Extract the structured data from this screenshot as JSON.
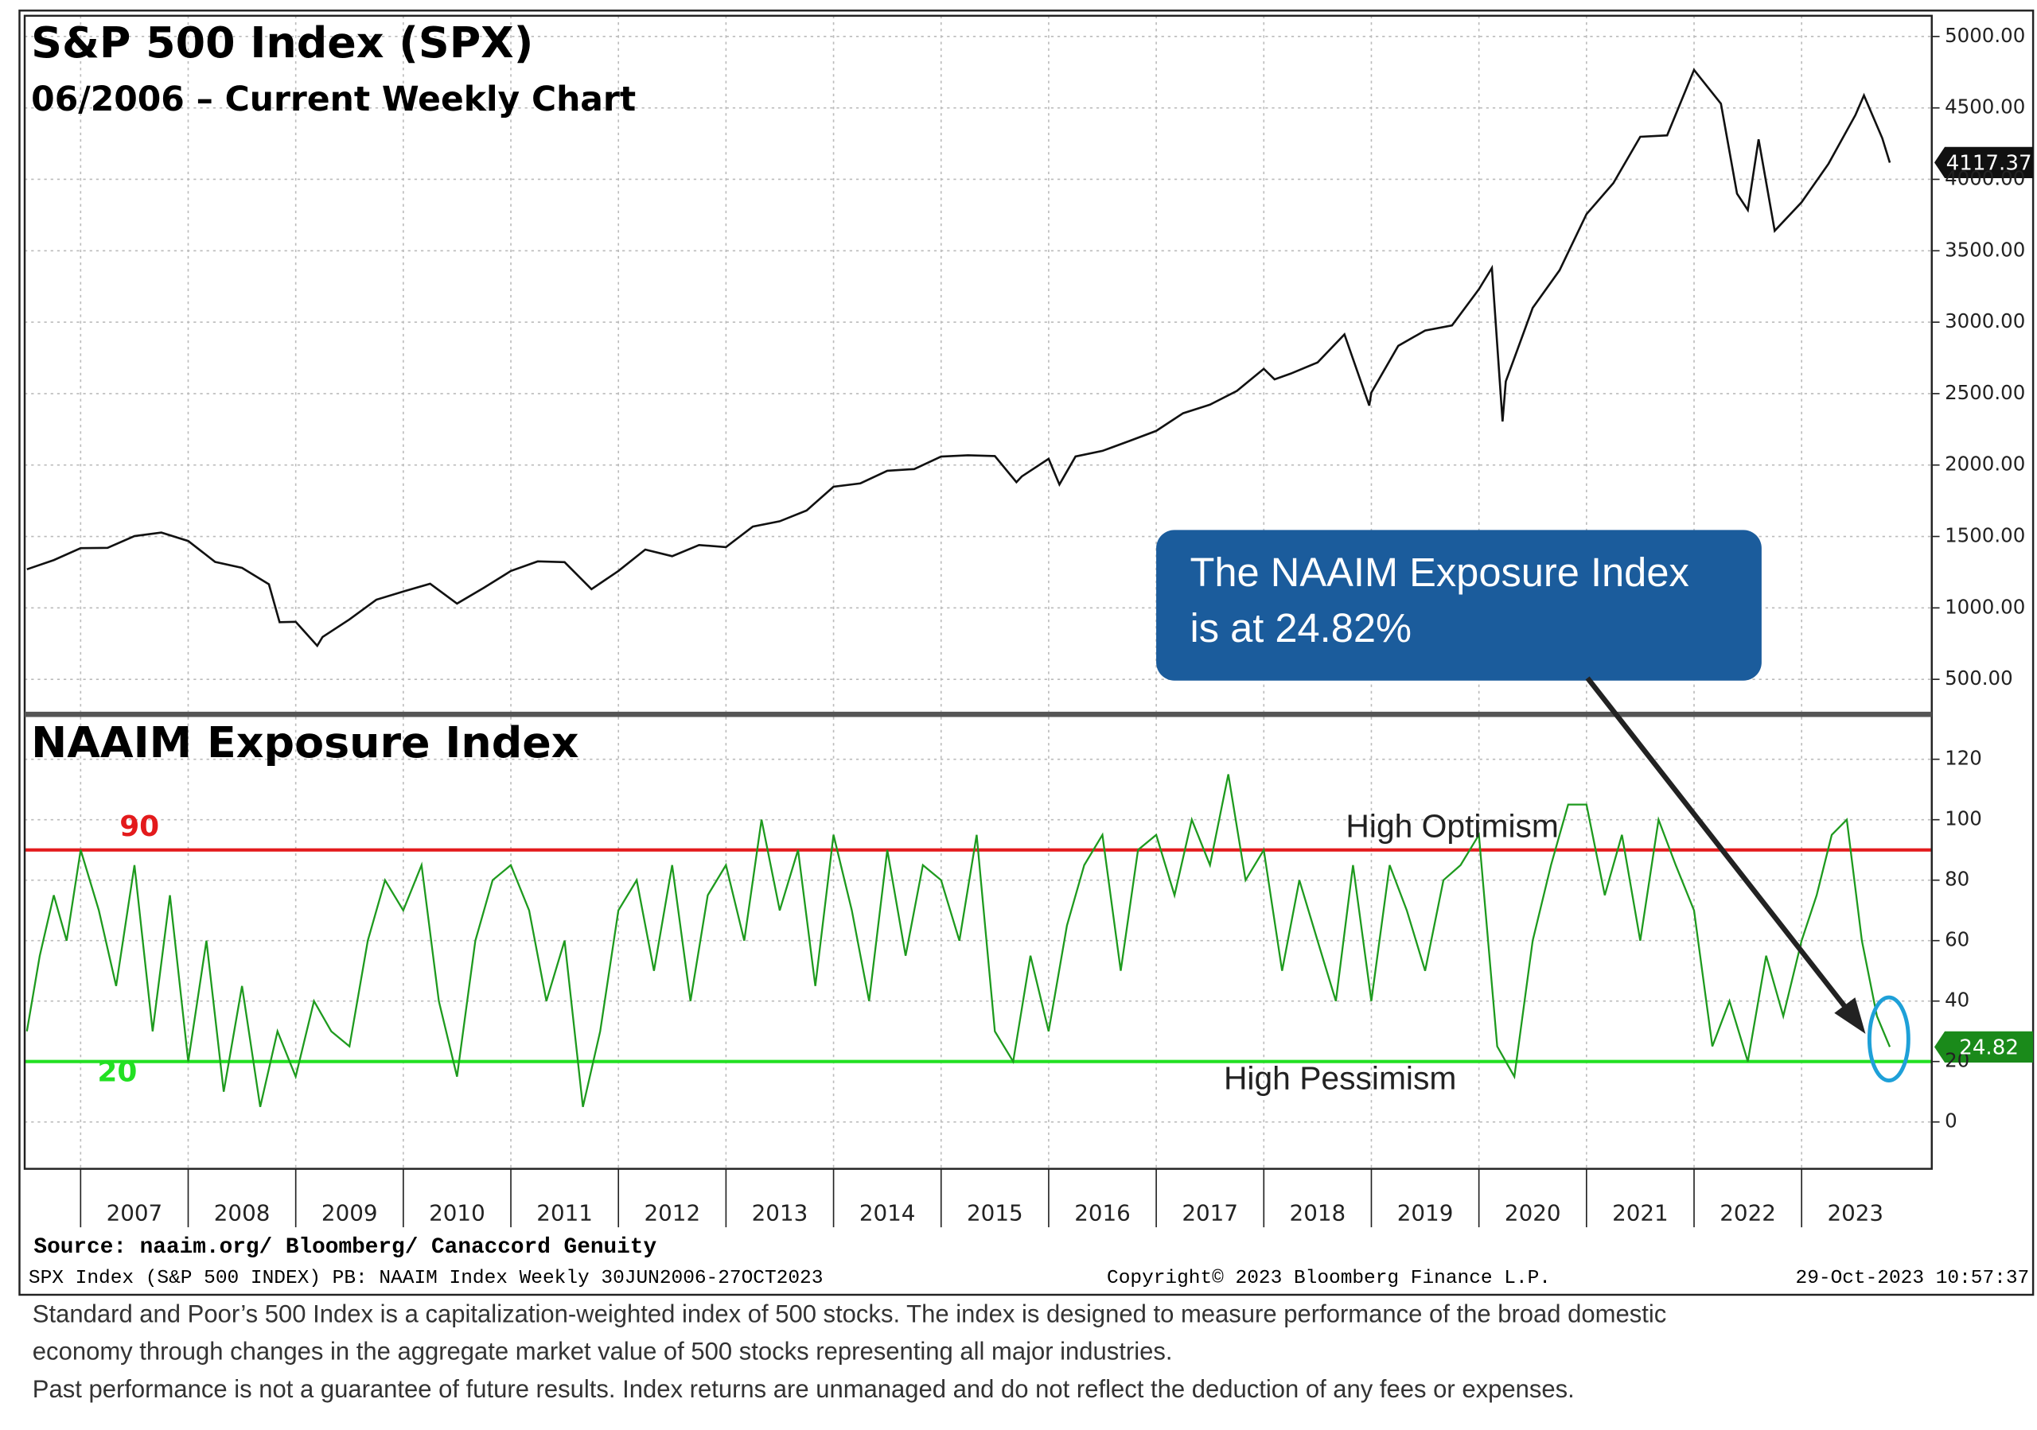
{
  "chart_data": [
    {
      "type": "line",
      "title": "S&P 500 Index (SPX)",
      "subtitle": "06/2006 – Current Weekly Chart",
      "color": "#111111",
      "x": [
        2006.5,
        2006.75,
        2007.0,
        2007.25,
        2007.5,
        2007.75,
        2008.0,
        2008.25,
        2008.5,
        2008.75,
        2008.85,
        2009.0,
        2009.2,
        2009.25,
        2009.5,
        2009.75,
        2010.0,
        2010.25,
        2010.5,
        2010.75,
        2011.0,
        2011.25,
        2011.5,
        2011.75,
        2012.0,
        2012.25,
        2012.5,
        2012.75,
        2013.0,
        2013.25,
        2013.5,
        2013.75,
        2014.0,
        2014.25,
        2014.5,
        2014.75,
        2015.0,
        2015.25,
        2015.5,
        2015.7,
        2015.75,
        2016.0,
        2016.1,
        2016.25,
        2016.5,
        2016.75,
        2017.0,
        2017.25,
        2017.5,
        2017.75,
        2018.0,
        2018.1,
        2018.25,
        2018.5,
        2018.75,
        2018.98,
        2019.0,
        2019.25,
        2019.5,
        2019.75,
        2020.0,
        2020.12,
        2020.22,
        2020.25,
        2020.5,
        2020.75,
        2021.0,
        2021.25,
        2021.5,
        2021.75,
        2022.0,
        2022.25,
        2022.4,
        2022.5,
        2022.6,
        2022.75,
        2023.0,
        2023.25,
        2023.5,
        2023.58,
        2023.75,
        2023.82
      ],
      "values": [
        1270,
        1335,
        1418,
        1420,
        1503,
        1527,
        1468,
        1322,
        1280,
        1166,
        900,
        903,
        735,
        797,
        919,
        1057,
        1115,
        1169,
        1030,
        1141,
        1258,
        1326,
        1320,
        1131,
        1258,
        1408,
        1362,
        1440,
        1426,
        1569,
        1606,
        1682,
        1848,
        1872,
        1960,
        1972,
        2059,
        2068,
        2063,
        1880,
        1920,
        2044,
        1864,
        2060,
        2099,
        2168,
        2239,
        2363,
        2423,
        2519,
        2674,
        2600,
        2640,
        2718,
        2914,
        2416,
        2507,
        2834,
        2942,
        2977,
        3231,
        3380,
        2305,
        2585,
        3100,
        3363,
        3756,
        3973,
        4298,
        4308,
        4766,
        4530,
        3900,
        3785,
        4280,
        3640,
        3840,
        4109,
        4450,
        4588,
        4288,
        4117.37
      ],
      "xlim": [
        2006.48,
        2024.21
      ],
      "ylim": [
        273,
        5145
      ],
      "yticks": [
        {
          "value": 500,
          "label": "500.00"
        },
        {
          "value": 1000,
          "label": "1000.00"
        },
        {
          "value": 1500,
          "label": "1500.00"
        },
        {
          "value": 2000,
          "label": "2000.00"
        },
        {
          "value": 2500,
          "label": "2500.00"
        },
        {
          "value": 3000,
          "label": "3000.00"
        },
        {
          "value": 3500,
          "label": "3500.00"
        },
        {
          "value": 4000,
          "label": "4000.00"
        },
        {
          "value": 4500,
          "label": "4500.00"
        },
        {
          "value": 5000,
          "label": "5000.00"
        }
      ],
      "grid": true,
      "last_value_color": "#111111"
    },
    {
      "type": "line",
      "title": "NAAIM Exposure Index",
      "color": "#1e9a1e",
      "x": [
        2006.5,
        2006.62,
        2006.75,
        2006.87,
        2007.0,
        2007.17,
        2007.33,
        2007.5,
        2007.67,
        2007.83,
        2008.0,
        2008.17,
        2008.33,
        2008.5,
        2008.67,
        2008.83,
        2009.0,
        2009.17,
        2009.33,
        2009.5,
        2009.67,
        2009.83,
        2010.0,
        2010.17,
        2010.33,
        2010.5,
        2010.67,
        2010.83,
        2011.0,
        2011.17,
        2011.33,
        2011.5,
        2011.67,
        2011.83,
        2012.0,
        2012.17,
        2012.33,
        2012.5,
        2012.67,
        2012.83,
        2013.0,
        2013.17,
        2013.33,
        2013.5,
        2013.67,
        2013.83,
        2014.0,
        2014.17,
        2014.33,
        2014.5,
        2014.67,
        2014.83,
        2015.0,
        2015.17,
        2015.33,
        2015.5,
        2015.67,
        2015.83,
        2016.0,
        2016.17,
        2016.33,
        2016.5,
        2016.67,
        2016.83,
        2017.0,
        2017.17,
        2017.33,
        2017.5,
        2017.67,
        2017.83,
        2018.0,
        2018.17,
        2018.33,
        2018.5,
        2018.67,
        2018.83,
        2019.0,
        2019.17,
        2019.33,
        2019.5,
        2019.67,
        2019.83,
        2020.0,
        2020.17,
        2020.33,
        2020.5,
        2020.67,
        2020.83,
        2021.0,
        2021.17,
        2021.33,
        2021.5,
        2021.67,
        2021.83,
        2022.0,
        2022.17,
        2022.33,
        2022.5,
        2022.67,
        2022.83,
        2023.0,
        2023.14,
        2023.28,
        2023.42,
        2023.56,
        2023.7,
        2023.82
      ],
      "values": [
        30,
        55,
        75,
        60,
        90,
        70,
        45,
        85,
        30,
        75,
        20,
        60,
        10,
        45,
        5,
        30,
        15,
        40,
        30,
        25,
        60,
        80,
        70,
        85,
        40,
        15,
        60,
        80,
        85,
        70,
        40,
        60,
        5,
        30,
        70,
        80,
        50,
        85,
        40,
        75,
        85,
        60,
        100,
        70,
        90,
        45,
        95,
        70,
        40,
        90,
        55,
        85,
        80,
        60,
        95,
        30,
        20,
        55,
        30,
        65,
        85,
        95,
        50,
        90,
        95,
        75,
        100,
        85,
        115,
        80,
        90,
        50,
        80,
        60,
        40,
        85,
        40,
        85,
        70,
        50,
        80,
        85,
        95,
        25,
        15,
        60,
        85,
        105,
        105,
        75,
        95,
        60,
        100,
        85,
        70,
        25,
        40,
        20,
        55,
        35,
        60,
        75,
        95,
        100,
        60,
        35,
        24.82
      ],
      "xlim": [
        2006.48,
        2024.21
      ],
      "ylim": [
        -15.5,
        134
      ],
      "yticks": [
        0,
        20,
        40,
        60,
        80,
        100,
        120
      ],
      "xticks": [
        {
          "value": 2007,
          "label": "2007"
        },
        {
          "value": 2008,
          "label": "2008"
        },
        {
          "value": 2009,
          "label": "2009"
        },
        {
          "value": 2010,
          "label": "2010"
        },
        {
          "value": 2011,
          "label": "2011"
        },
        {
          "value": 2012,
          "label": "2012"
        },
        {
          "value": 2013,
          "label": "2013"
        },
        {
          "value": 2014,
          "label": "2014"
        },
        {
          "value": 2015,
          "label": "2015"
        },
        {
          "value": 2016,
          "label": "2016"
        },
        {
          "value": 2017,
          "label": "2017"
        },
        {
          "value": 2018,
          "label": "2018"
        },
        {
          "value": 2019,
          "label": "2019"
        },
        {
          "value": 2020,
          "label": "2020"
        },
        {
          "value": 2021,
          "label": "2021"
        },
        {
          "value": 2022,
          "label": "2022"
        },
        {
          "value": 2023,
          "label": "2023"
        }
      ],
      "grid": true,
      "last_value_color": "#1a8a1a",
      "ref_lines": [
        {
          "value": 90,
          "color": "#e31a1c"
        },
        {
          "value": 20,
          "color": "#22e022"
        }
      ],
      "annotations": [
        "High Optimism",
        "High Pessimism"
      ],
      "callout": [
        "The NAAIM Exposure Index",
        "is at 24.82%"
      ]
    }
  ],
  "footer": {
    "source": "Source: naaim.org/ Bloomberg/ Canaccord Genuity",
    "info": "SPX Index (S&P 500 INDEX) PB: NAAIM Index  Weekly 30JUN2006-27OCT2023",
    "copyright": "Copyright© 2023 Bloomberg Finance L.P.",
    "timestamp": "29-Oct-2023 10:57:37",
    "disclaimer": [
      "Standard and Poor’s 500 Index is a capitalization-weighted index of 500 stocks. The index is designed to measure performance of the broad domestic",
      "economy through changes in the aggregate market value of 500 stocks representing all major industries.",
      "Past performance is not a guarantee of future results. Index returns are unmanaged and do not reflect the deduction of any fees or expenses."
    ]
  }
}
